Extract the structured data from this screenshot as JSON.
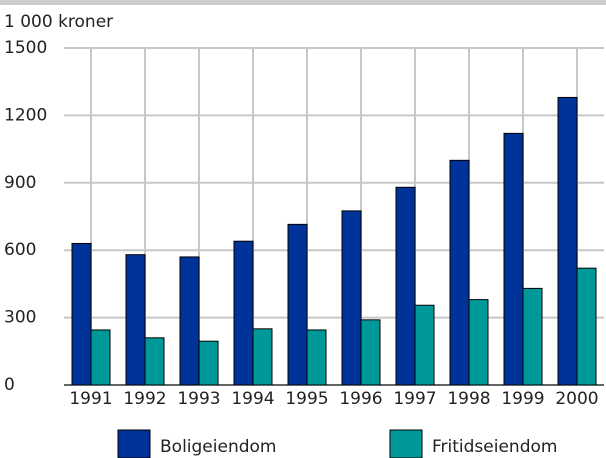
{
  "chart_data": {
    "type": "bar",
    "y_label": "1 000 kroner",
    "categories": [
      "1991",
      "1992",
      "1993",
      "1994",
      "1995",
      "1996",
      "1997",
      "1998",
      "1999",
      "2000"
    ],
    "series": [
      {
        "name": "Boligeiendom",
        "color": "#003399",
        "values": [
          630,
          580,
          570,
          640,
          715,
          775,
          880,
          1000,
          1120,
          1280
        ]
      },
      {
        "name": "Fritidseiendom",
        "color": "#009999",
        "values": [
          245,
          210,
          195,
          250,
          245,
          290,
          355,
          380,
          430,
          520
        ]
      }
    ],
    "ylim": [
      0,
      1500
    ],
    "yticks": [
      0,
      300,
      600,
      900,
      1200,
      1500
    ],
    "grid": true
  }
}
